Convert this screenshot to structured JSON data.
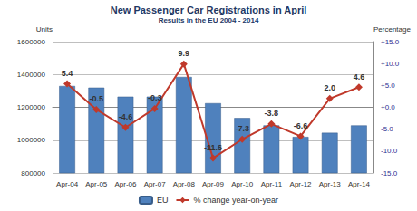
{
  "chart_data": {
    "type": "bar",
    "title": "New Passenger Car Registrations in April",
    "subtitle": "Results in the EU 2004 - 2014",
    "ylabel": "Units",
    "y2label": "Percentage",
    "categories": [
      "Apr-04",
      "Apr-05",
      "Apr-06",
      "Apr-07",
      "Apr-08",
      "Apr-09",
      "Apr-10",
      "Apr-11",
      "Apr-12",
      "Apr-13",
      "Apr-14"
    ],
    "ylim": [
      800000,
      1600000
    ],
    "yticks": [
      800000,
      1000000,
      1200000,
      1400000,
      1600000
    ],
    "y2lim": [
      -15,
      15
    ],
    "y2ticks": [
      {
        "value": -15,
        "label": "-15.0"
      },
      {
        "value": -10,
        "label": "-10.0"
      },
      {
        "value": -5,
        "label": "-5.0"
      },
      {
        "value": 0,
        "label": "+0.0"
      },
      {
        "value": 5,
        "label": "+5.0"
      },
      {
        "value": 10,
        "label": "+10.0"
      },
      {
        "value": 15,
        "label": "+15.0"
      }
    ],
    "grid": true,
    "legend": "bottom",
    "series": [
      {
        "name": "EU",
        "type": "bar",
        "color": "#4f81bd",
        "values": [
          1330000,
          1320000,
          1265000,
          1265000,
          1385000,
          1225000,
          1135000,
          1090000,
          1020000,
          1045000,
          1090000
        ]
      },
      {
        "name": "% change year-on-year",
        "type": "line",
        "axis": "y2",
        "color": "#c0392b",
        "marker": "diamond",
        "data_labels": true,
        "values": [
          5.4,
          -0.5,
          -4.6,
          -0.3,
          9.9,
          -11.6,
          -7.3,
          -3.8,
          -6.6,
          2.0,
          4.6
        ],
        "value_labels": [
          "5.4",
          "-0.5",
          "-4.6",
          "-0.3",
          "9.9",
          "-11.6",
          "-7.3",
          "-3.8",
          "-6.6",
          "2.0",
          "4.6"
        ]
      }
    ]
  }
}
